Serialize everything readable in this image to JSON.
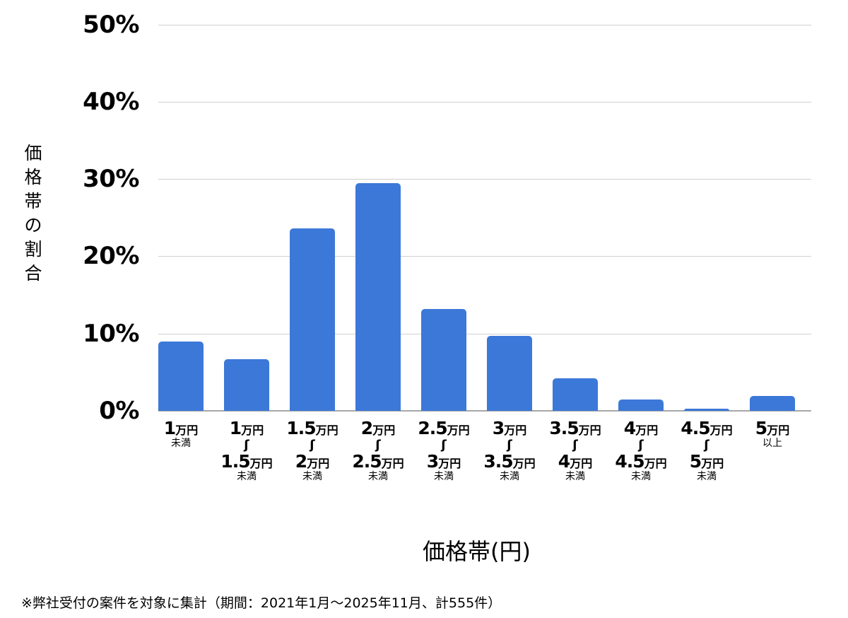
{
  "chart_data": {
    "type": "bar",
    "title": "",
    "xlabel": "価格帯(円)",
    "ylabel": "価格帯の割合",
    "ylim": [
      0,
      50
    ],
    "yticks": [
      "0%",
      "10%",
      "20%",
      "30%",
      "40%",
      "50%"
    ],
    "grid": true,
    "legend": null,
    "bar_color": "#3c78d8",
    "categories": [
      "1万円未満",
      "1万円〜1.5万円未満",
      "1.5万円〜2万円未満",
      "2万円〜2.5万円未満",
      "2.5万円〜3万円未満",
      "3万円〜3.5万円未満",
      "3.5万円〜4万円未満",
      "4万円〜4.5万円未満",
      "4.5万円〜5万円未満",
      "5万円以上"
    ],
    "values": [
      9.0,
      6.7,
      23.6,
      29.5,
      13.2,
      9.7,
      4.2,
      1.5,
      0.3,
      1.9
    ],
    "unit": "%",
    "footnote": "※弊社受付の案件を対象に集計（期間：2021年1月〜2025年11月、計555件）"
  },
  "axis": {
    "yticks": [
      {
        "label": "50%",
        "value": 50
      },
      {
        "label": "40%",
        "value": 40
      },
      {
        "label": "30%",
        "value": 30
      },
      {
        "label": "20%",
        "value": 20
      },
      {
        "label": "10%",
        "value": 10
      },
      {
        "label": "0%",
        "value": 0
      }
    ],
    "ytitle_chars": [
      "価",
      "格",
      "帯",
      "の",
      "割",
      "合"
    ],
    "xtitle": "価格帯(円)"
  },
  "xlabels": [
    {
      "from_num": "1",
      "from_unit": "万円",
      "wave": "",
      "to_num": "",
      "to_unit": "",
      "suffix": "未満"
    },
    {
      "from_num": "1",
      "from_unit": "万円",
      "wave": "〜",
      "to_num": "1.5",
      "to_unit": "万円",
      "suffix": "未満"
    },
    {
      "from_num": "1.5",
      "from_unit": "万円",
      "wave": "〜",
      "to_num": "2",
      "to_unit": "万円",
      "suffix": "未満"
    },
    {
      "from_num": "2",
      "from_unit": "万円",
      "wave": "〜",
      "to_num": "2.5",
      "to_unit": "万円",
      "suffix": "未満"
    },
    {
      "from_num": "2.5",
      "from_unit": "万円",
      "wave": "〜",
      "to_num": "3",
      "to_unit": "万円",
      "suffix": "未満"
    },
    {
      "from_num": "3",
      "from_unit": "万円",
      "wave": "〜",
      "to_num": "3.5",
      "to_unit": "万円",
      "suffix": "未満"
    },
    {
      "from_num": "3.5",
      "from_unit": "万円",
      "wave": "〜",
      "to_num": "4",
      "to_unit": "万円",
      "suffix": "未満"
    },
    {
      "from_num": "4",
      "from_unit": "万円",
      "wave": "〜",
      "to_num": "4.5",
      "to_unit": "万円",
      "suffix": "未満"
    },
    {
      "from_num": "4.5",
      "from_unit": "万円",
      "wave": "〜",
      "to_num": "5",
      "to_unit": "万円",
      "suffix": "未満"
    },
    {
      "from_num": "5",
      "from_unit": "万円",
      "wave": "",
      "to_num": "",
      "to_unit": "",
      "suffix": "以上"
    }
  ],
  "footnote": "※弊社受付の案件を対象に集計（期間：2021年1月〜2025年11月、計555件）"
}
